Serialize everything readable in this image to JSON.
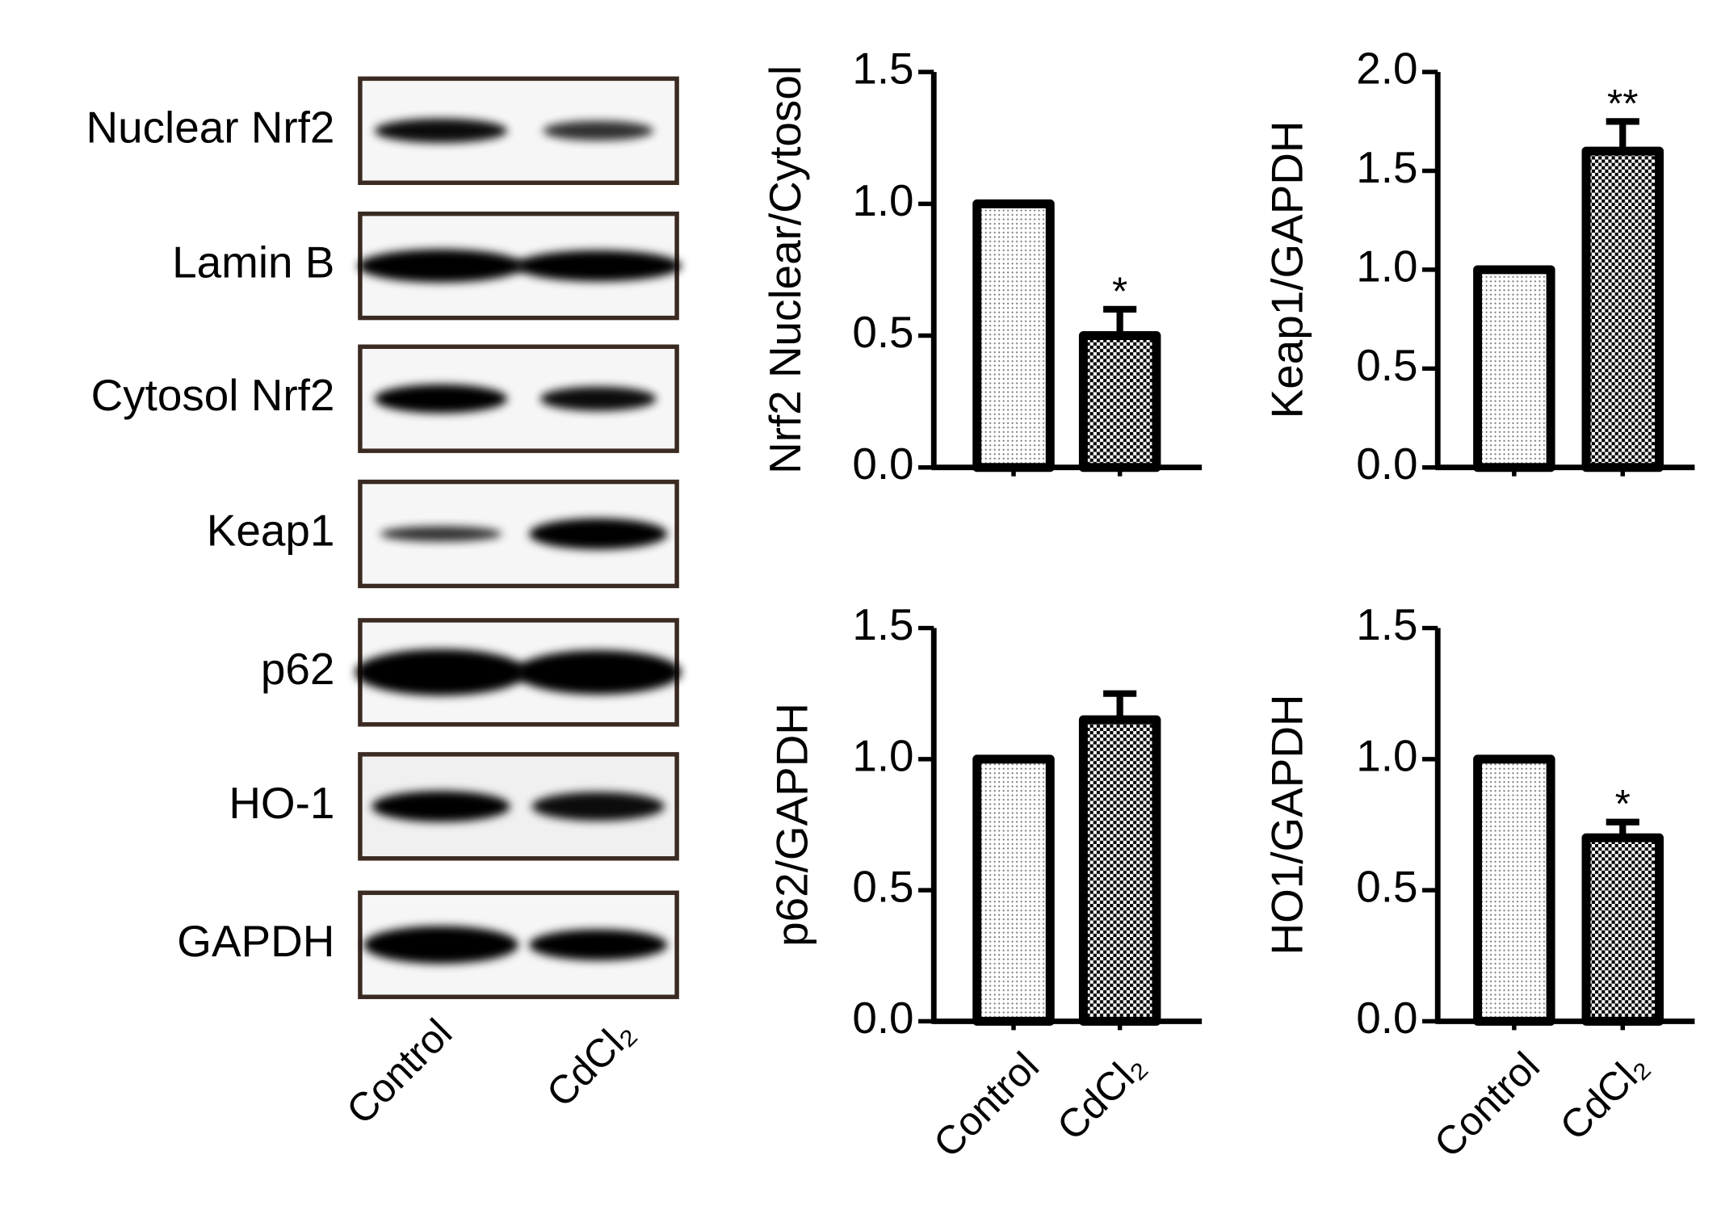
{
  "blot": {
    "rows": [
      "Nuclear Nrf2",
      "Lamin B",
      "Cytosol Nrf2",
      "Keap1",
      "p62",
      "HO-1",
      "GAPDH"
    ],
    "lanes": [
      "Control",
      "CdCl₂"
    ]
  },
  "chart_data": [
    {
      "type": "bar",
      "y_label": "Nrf2 Nuclear/Cytosol",
      "values": [
        1.0,
        0.5
      ],
      "errors": [
        0,
        0.1
      ],
      "significance": [
        null,
        "*"
      ],
      "fills": [
        "dots",
        "checker"
      ],
      "ylim": [
        0,
        1.5
      ],
      "yticks": [
        {
          "value": 0,
          "label": "0.0"
        },
        {
          "value": 0.5,
          "label": "0.5"
        },
        {
          "value": 1,
          "label": "1.0"
        },
        {
          "value": 1.5,
          "label": "1.5"
        }
      ]
    },
    {
      "type": "bar",
      "y_label": "Keap1/GAPDH",
      "values": [
        1.0,
        1.6
      ],
      "errors": [
        0,
        0.15
      ],
      "significance": [
        null,
        "**"
      ],
      "fills": [
        "dots",
        "checker"
      ],
      "ylim": [
        0,
        2
      ],
      "yticks": [
        {
          "value": 0,
          "label": "0.0"
        },
        {
          "value": 0.5,
          "label": "0.5"
        },
        {
          "value": 1,
          "label": "1.0"
        },
        {
          "value": 1.5,
          "label": "1.5"
        },
        {
          "value": 2,
          "label": "2.0"
        }
      ]
    },
    {
      "type": "bar",
      "y_label": "p62/GAPDH",
      "categories": [
        "Control",
        "CdCl₂"
      ],
      "values": [
        1.0,
        1.15
      ],
      "errors": [
        0,
        0.1
      ],
      "significance": [
        null,
        null
      ],
      "fills": [
        "dots",
        "checker"
      ],
      "ylim": [
        0,
        1.5
      ],
      "yticks": [
        {
          "value": 0,
          "label": "0.0"
        },
        {
          "value": 0.5,
          "label": "0.5"
        },
        {
          "value": 1,
          "label": "1.0"
        },
        {
          "value": 1.5,
          "label": "1.5"
        }
      ]
    },
    {
      "type": "bar",
      "y_label": "HO1/GAPDH",
      "categories": [
        "Control",
        "CdCl₂"
      ],
      "values": [
        1.0,
        0.7
      ],
      "errors": [
        0,
        0.06
      ],
      "significance": [
        null,
        "*"
      ],
      "fills": [
        "dots",
        "checker"
      ],
      "ylim": [
        0,
        1.5
      ],
      "yticks": [
        {
          "value": 0,
          "label": "0.0"
        },
        {
          "value": 0.5,
          "label": "0.5"
        },
        {
          "value": 1,
          "label": "1.0"
        },
        {
          "value": 1.5,
          "label": "1.5"
        }
      ]
    }
  ]
}
